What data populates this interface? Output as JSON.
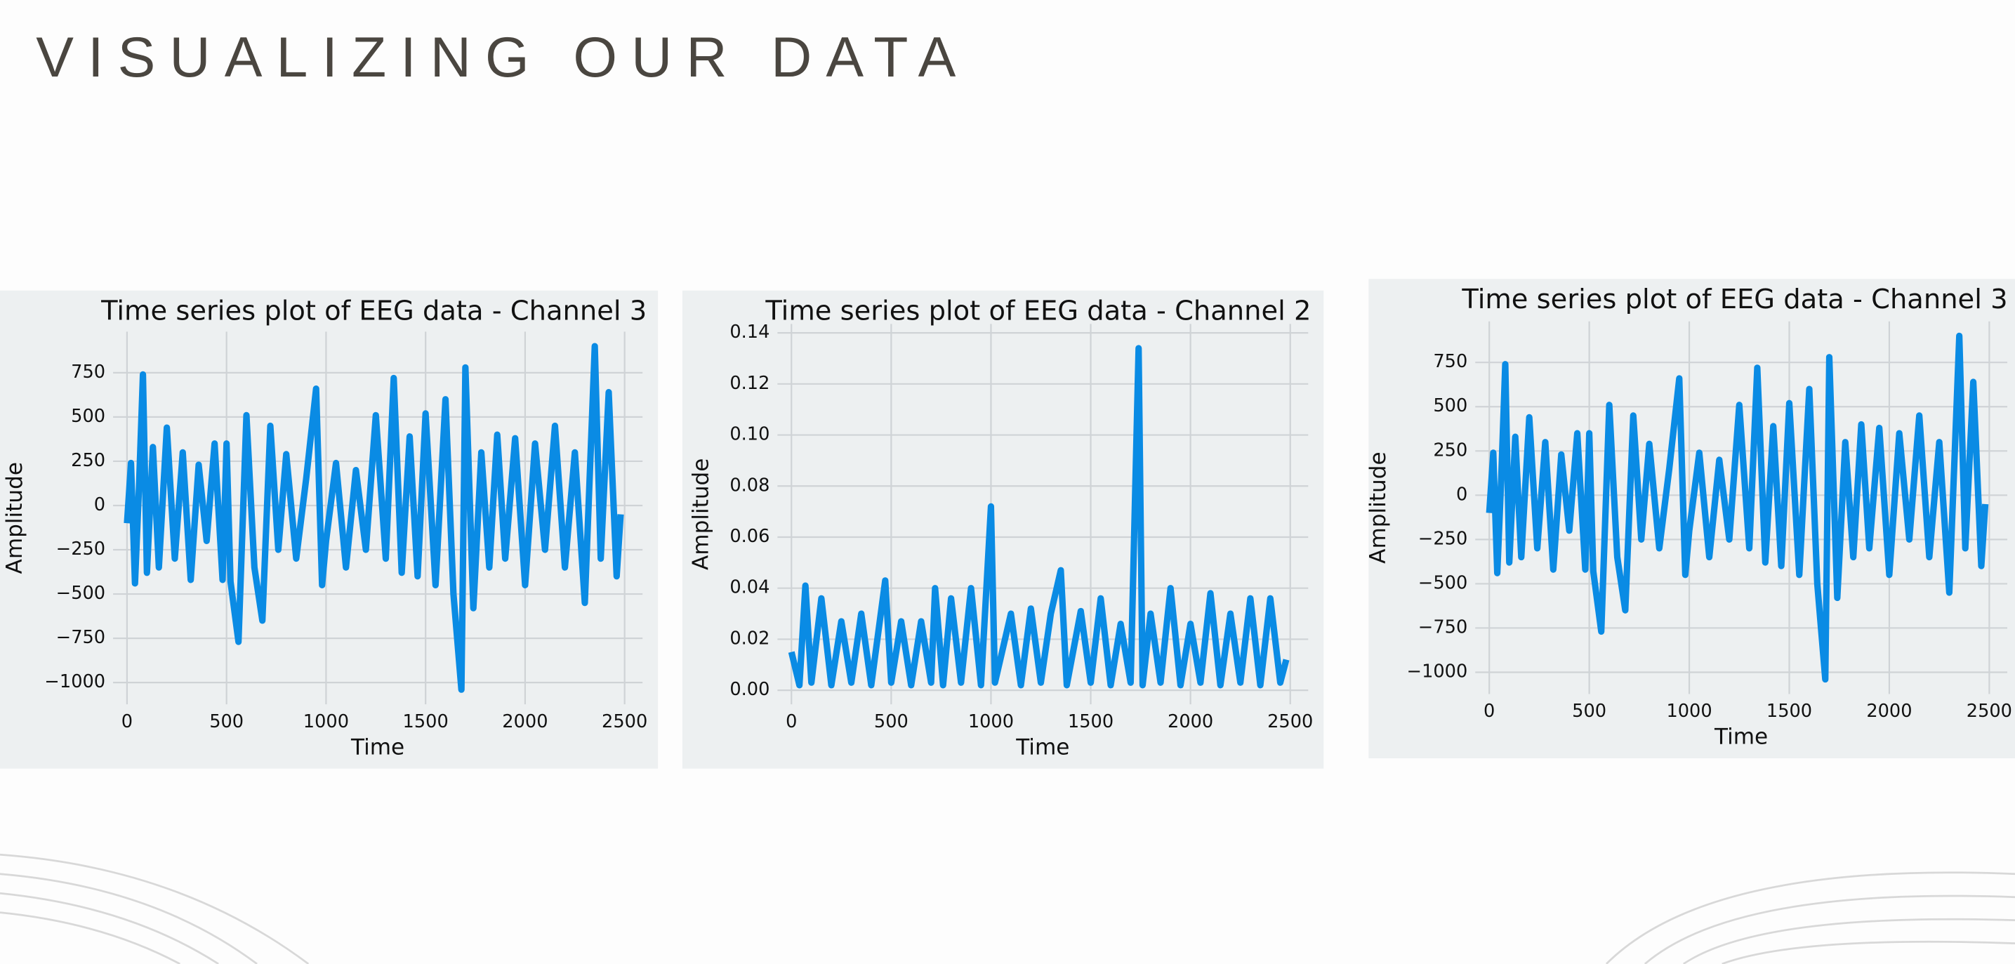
{
  "title": "VISUALIZING OUR DATA",
  "chart_data": [
    {
      "type": "line",
      "title": "Time series plot of EEG data - Channel 3",
      "x_label": "Time",
      "y_label": "Amplitude",
      "grid": true,
      "x": [
        0,
        20,
        40,
        60,
        80,
        100,
        130,
        160,
        200,
        240,
        280,
        320,
        360,
        400,
        440,
        480,
        500,
        520,
        560,
        600,
        640,
        680,
        720,
        760,
        800,
        850,
        900,
        950,
        980,
        1000,
        1050,
        1100,
        1150,
        1200,
        1250,
        1300,
        1340,
        1380,
        1420,
        1460,
        1500,
        1550,
        1600,
        1640,
        1680,
        1700,
        1740,
        1780,
        1820,
        1860,
        1900,
        1950,
        2000,
        2050,
        2100,
        2150,
        2200,
        2250,
        2300,
        2350,
        2380,
        2420,
        2460,
        2480
      ],
      "series": [
        {
          "color": "#0a8be4",
          "values": [
            -100,
            240,
            -440,
            100,
            740,
            -380,
            330,
            -350,
            440,
            -300,
            300,
            -420,
            230,
            -200,
            350,
            -420,
            350,
            -430,
            -770,
            510,
            -350,
            -650,
            450,
            -250,
            290,
            -300,
            150,
            660,
            -450,
            -200,
            240,
            -350,
            200,
            -250,
            510,
            -300,
            720,
            -380,
            390,
            -400,
            520,
            -450,
            600,
            -500,
            -1040,
            780,
            -580,
            300,
            -350,
            400,
            -300,
            380,
            -450,
            350,
            -250,
            450,
            -350,
            300,
            -550,
            900,
            -300,
            640,
            -400,
            -50
          ]
        }
      ],
      "xlim": [
        -70,
        2590
      ],
      "ylim": [
        -1123,
        982
      ],
      "xticks": [
        0,
        500,
        1000,
        1500,
        2000,
        2500
      ],
      "yticks": [
        {
          "value": -1000,
          "label": "−1000"
        },
        {
          "value": -750,
          "label": "−750"
        },
        {
          "value": -500,
          "label": "−500"
        },
        {
          "value": -250,
          "label": "−250"
        },
        0,
        250,
        500,
        750
      ]
    },
    {
      "type": "line",
      "title": "Time series plot of EEG data - Channel 2",
      "x_label": "Time",
      "y_label": "Amplitude",
      "grid": true,
      "x": [
        0,
        40,
        70,
        100,
        150,
        200,
        250,
        300,
        350,
        400,
        470,
        500,
        550,
        600,
        650,
        700,
        720,
        760,
        800,
        850,
        900,
        950,
        1000,
        1020,
        1100,
        1150,
        1200,
        1250,
        1300,
        1350,
        1380,
        1450,
        1500,
        1550,
        1600,
        1650,
        1700,
        1740,
        1760,
        1800,
        1850,
        1900,
        1950,
        2000,
        2050,
        2100,
        2150,
        2200,
        2250,
        2300,
        2350,
        2400,
        2450,
        2480
      ],
      "series": [
        {
          "color": "#0a8be4",
          "values": [
            0.015,
            0.002,
            0.041,
            0.003,
            0.036,
            0.002,
            0.027,
            0.003,
            0.03,
            0.002,
            0.043,
            0.003,
            0.027,
            0.002,
            0.027,
            0.003,
            0.04,
            0.002,
            0.036,
            0.003,
            0.04,
            0.002,
            0.072,
            0.003,
            0.03,
            0.002,
            0.032,
            0.003,
            0.03,
            0.047,
            0.002,
            0.031,
            0.003,
            0.036,
            0.002,
            0.026,
            0.003,
            0.134,
            0.002,
            0.03,
            0.003,
            0.04,
            0.002,
            0.026,
            0.003,
            0.038,
            0.002,
            0.03,
            0.003,
            0.036,
            0.002,
            0.036,
            0.003,
            0.012
          ]
        }
      ],
      "xlim": [
        -70,
        2590
      ],
      "ylim": [
        -0.0055,
        0.1435
      ],
      "xticks": [
        0,
        500,
        1000,
        1500,
        2000,
        2500
      ],
      "yticks": [
        {
          "value": 0,
          "label": "0.00"
        },
        0.02,
        0.04,
        0.06,
        0.08,
        {
          "value": 0.1,
          "label": "0.10"
        },
        0.12,
        0.14
      ]
    },
    {
      "type": "line",
      "title": "Time series plot of EEG data - Channel 3",
      "x_label": "Time",
      "y_label": "Amplitude",
      "grid": true,
      "x": [
        0,
        20,
        40,
        60,
        80,
        100,
        130,
        160,
        200,
        240,
        280,
        320,
        360,
        400,
        440,
        480,
        500,
        520,
        560,
        600,
        640,
        680,
        720,
        760,
        800,
        850,
        900,
        950,
        980,
        1000,
        1050,
        1100,
        1150,
        1200,
        1250,
        1300,
        1340,
        1380,
        1420,
        1460,
        1500,
        1550,
        1600,
        1640,
        1680,
        1700,
        1740,
        1780,
        1820,
        1860,
        1900,
        1950,
        2000,
        2050,
        2100,
        2150,
        2200,
        2250,
        2300,
        2350,
        2380,
        2420,
        2460,
        2480
      ],
      "series": [
        {
          "color": "#0a8be4",
          "values": [
            -100,
            240,
            -440,
            100,
            740,
            -380,
            330,
            -350,
            440,
            -300,
            300,
            -420,
            230,
            -200,
            350,
            -420,
            350,
            -430,
            -770,
            510,
            -350,
            -650,
            450,
            -250,
            290,
            -300,
            150,
            660,
            -450,
            -200,
            240,
            -350,
            200,
            -250,
            510,
            -300,
            720,
            -380,
            390,
            -400,
            520,
            -450,
            600,
            -500,
            -1040,
            780,
            -580,
            300,
            -350,
            400,
            -300,
            380,
            -450,
            350,
            -250,
            450,
            -350,
            300,
            -550,
            900,
            -300,
            640,
            -400,
            -50
          ]
        }
      ],
      "xlim": [
        -70,
        2590
      ],
      "ylim": [
        -1123,
        982
      ],
      "xticks": [
        0,
        500,
        1000,
        1500,
        2000,
        2500
      ],
      "yticks": [
        {
          "value": -1000,
          "label": "−1000"
        },
        {
          "value": -750,
          "label": "−750"
        },
        {
          "value": -500,
          "label": "−500"
        },
        {
          "value": -250,
          "label": "−250"
        },
        0,
        250,
        500,
        750
      ]
    }
  ]
}
